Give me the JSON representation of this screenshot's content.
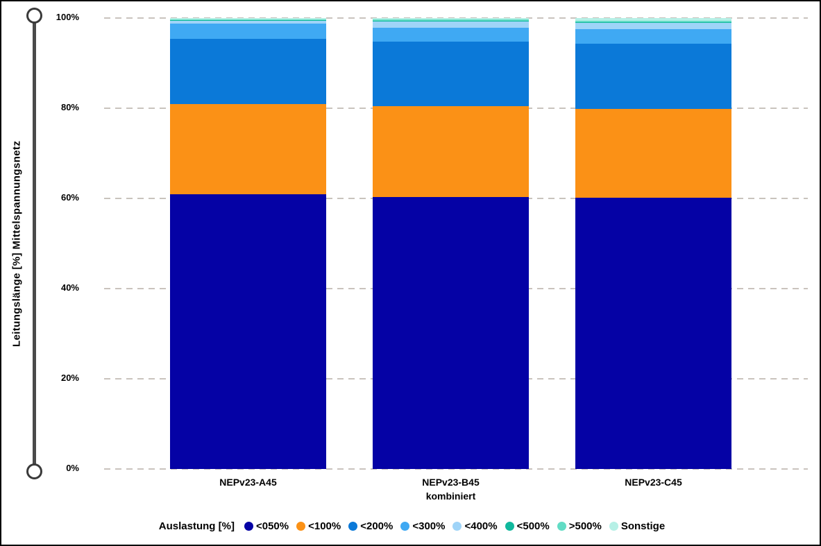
{
  "chart_data": {
    "type": "bar",
    "stacked": true,
    "orientation": "vertical",
    "title": "",
    "ylabel": "Leitungslänge [%] Mittelspannungsnetz",
    "xlabel": "",
    "ylim": [
      0,
      100
    ],
    "y_ticks": [
      0,
      20,
      40,
      60,
      80,
      100
    ],
    "y_tick_suffix": "%",
    "grid": "dashed horizontal",
    "legend_title": "Auslastung [%]",
    "legend_position": "bottom",
    "categories": [
      {
        "label": "NEPv23-A45",
        "sublabel": ""
      },
      {
        "label": "NEPv23-B45",
        "sublabel": "kombiniert"
      },
      {
        "label": "NEPv23-C45",
        "sublabel": ""
      }
    ],
    "series": [
      {
        "name": "<050%",
        "color": "#0502a5",
        "values": [
          61.0,
          60.3,
          60.2
        ]
      },
      {
        "name": "<100%",
        "color": "#fb9116",
        "values": [
          20.0,
          20.1,
          19.7
        ]
      },
      {
        "name": "<200%",
        "color": "#0b79d8",
        "values": [
          14.4,
          14.3,
          14.4
        ]
      },
      {
        "name": "<300%",
        "color": "#3fa9f3",
        "values": [
          3.4,
          3.2,
          3.3
        ]
      },
      {
        "name": "<400%",
        "color": "#9fd4f8",
        "values": [
          0.7,
          1.4,
          1.4
        ]
      },
      {
        "name": "<500%",
        "color": "#10b89d",
        "values": [
          0.1,
          0.1,
          0.15
        ]
      },
      {
        "name": ">500%",
        "color": "#62dcc5",
        "values": [
          0.15,
          0.25,
          0.3
        ]
      },
      {
        "name": "Sonstige",
        "color": "#b6f0e6",
        "values": [
          0.25,
          0.35,
          0.55
        ]
      }
    ]
  }
}
